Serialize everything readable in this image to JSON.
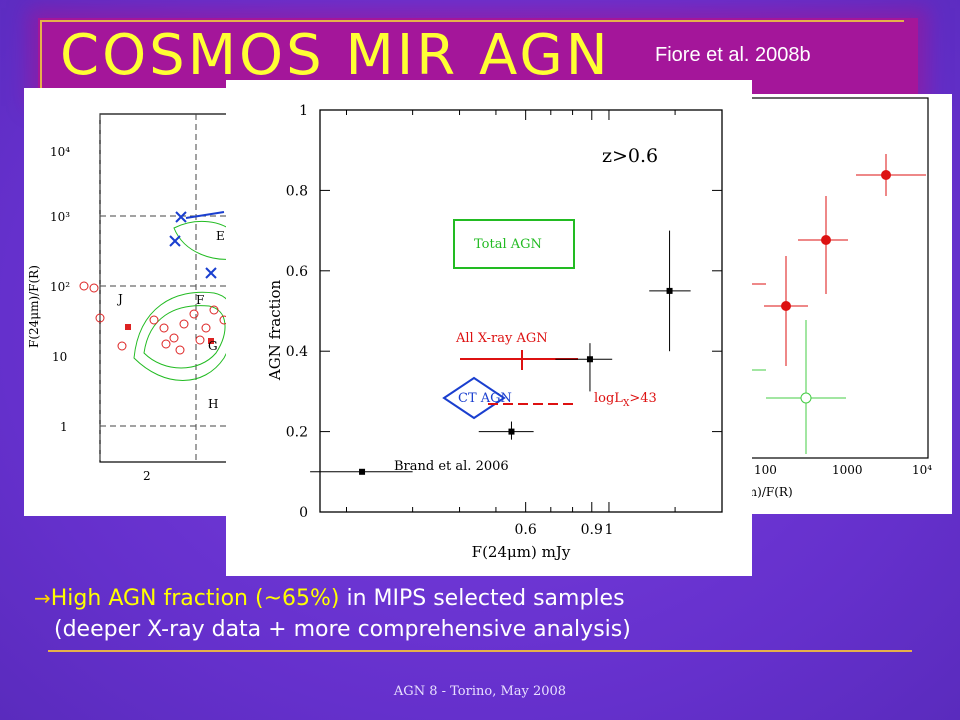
{
  "slide": {
    "title": "COSMOS MIR AGN",
    "citation": "Fiore et al. 2008b",
    "bullet_arrow": "→",
    "bullet_highlight": "High AGN fraction (~65%)",
    "bullet_rest": " in MIPS selected samples",
    "bullet_line2": "(deeper X-ray data + more comprehensive analysis)",
    "footer": "AGN 8 - Torino, May 2008"
  },
  "left_plot": {
    "ylabel": "F(24μm)/F(R)",
    "yticks": [
      "10⁴",
      "10³",
      "10²",
      "10",
      "1"
    ],
    "xticks": [
      "2"
    ],
    "region_labels": [
      "J",
      "F",
      "G",
      "H",
      "E"
    ]
  },
  "right_plot": {
    "xticks": [
      "100",
      "1000",
      "10⁴"
    ],
    "xlabel": "μm)/F(R)"
  },
  "chart_data": {
    "type": "scatter",
    "xlabel": "F(24μm) mJy",
    "ylabel": "AGN fraction",
    "xscale": "log",
    "xticks": [
      "0.6",
      "0.9",
      "1"
    ],
    "yticks": [
      "0",
      "0.2",
      "0.4",
      "0.6",
      "0.8",
      "1"
    ],
    "ylim": [
      0,
      1
    ],
    "annotation_z": "z>0.6",
    "points": [
      {
        "x": 0.22,
        "y": 0.1,
        "xerr": [
          0.16,
          0.3
        ],
        "yerr": [
          0.095,
          0.105
        ]
      },
      {
        "x": 0.55,
        "y": 0.2,
        "xerr": [
          0.45,
          0.63
        ],
        "yerr": [
          0.18,
          0.225
        ]
      },
      {
        "x": 0.89,
        "y": 0.38,
        "xerr": [
          0.72,
          1.02
        ],
        "yerr": [
          0.3,
          0.42
        ]
      },
      {
        "x": 1.45,
        "y": 0.55,
        "xerr": [
          1.28,
          1.65
        ],
        "yerr": [
          0.4,
          0.7
        ]
      }
    ],
    "labels": {
      "brand": "Brand et al. 2006",
      "total_agn": "Total AGN",
      "all_xray": "All X-ray AGN",
      "ct_agn": "CT AGN",
      "logl": "logL",
      "logl_sub": "X",
      "logl_rest": ">43"
    },
    "colors": {
      "points": "#000000",
      "total_agn": "#22bb22",
      "all_xray": "#dd1111",
      "ct_agn": "#1a3fcf",
      "logl": "#dd1111"
    }
  }
}
